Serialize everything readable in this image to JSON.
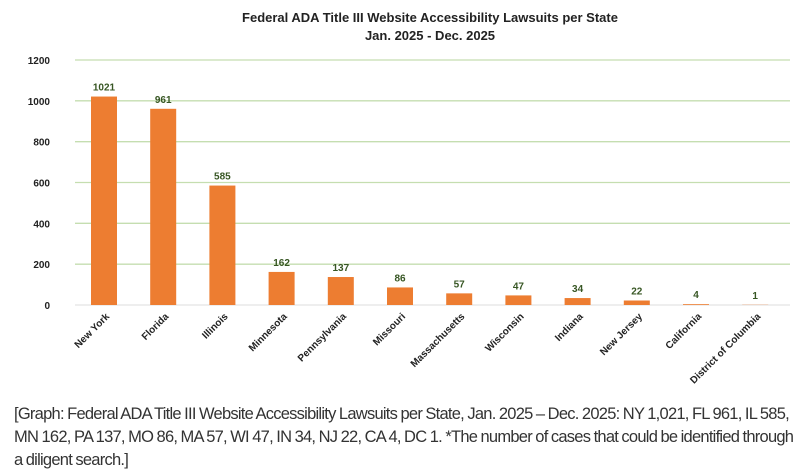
{
  "chart_data": {
    "type": "bar",
    "title": "Federal ADA Title III Website Accessibility Lawsuits per State",
    "subtitle": "Jan. 2025 - Dec. 2025",
    "xlabel": "",
    "ylabel": "",
    "ylim": [
      0,
      1200
    ],
    "yticks": [
      0,
      200,
      400,
      600,
      800,
      1000,
      1200
    ],
    "grid": true,
    "legend": "none",
    "categories": [
      "New York",
      "Florida",
      "Illinois",
      "Minnesota",
      "Pennsylvania",
      "Missouri",
      "Massachusetts",
      "Wisconsin",
      "Indiana",
      "New Jersey",
      "California",
      "District of Columbia"
    ],
    "values": [
      1021,
      961,
      585,
      162,
      137,
      86,
      57,
      47,
      34,
      22,
      4,
      1
    ],
    "colors": {
      "bar": "#ed7d31",
      "grid": "#c5deb0",
      "data_label": "#375623"
    }
  },
  "caption": "[Graph: Federal ADA Title III Website Accessibility Lawsuits per State, Jan. 2025 – Dec. 2025: NY 1,021, FL 961, IL 585, MN 162, PA 137, MO 86, MA 57, WI 47, IN 34, NJ 22, CA 4, DC 1. *The number of cases that could be identified through a diligent search.]"
}
